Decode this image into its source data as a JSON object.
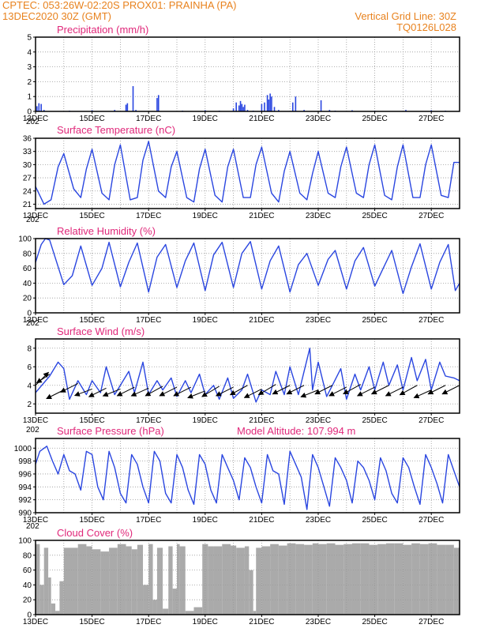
{
  "header": {
    "line1": "CPTEC:   053:26W-02:20S   PROX01: PRAINHA (PA)",
    "line2_left": "13DEC2020 30Z (GMT)",
    "line2_right": "Vertical Grid Line: 30Z",
    "line3_right": "TQ0126L028"
  },
  "colors": {
    "header": "#e8821e",
    "title": "#e0287a",
    "series": "#2a46e0",
    "cloud": "#aaaaaa",
    "arrow": "#000000",
    "grid": "#999999"
  },
  "year_label": "202",
  "chart_data": [
    {
      "id": "precip",
      "type": "bar",
      "title": "Precipitation (mm/h)",
      "xlim": [
        13.0,
        28.0
      ],
      "xticks": [
        "13DEC",
        "15DEC",
        "17DEC",
        "19DEC",
        "21DEC",
        "23DEC",
        "25DEC",
        "27DEC"
      ],
      "ylim": [
        0,
        5
      ],
      "yticks": [
        0,
        1,
        2,
        3,
        4,
        5
      ],
      "grid": true,
      "x": [
        13.05,
        13.12,
        13.2,
        13.3,
        14.2,
        15.0,
        15.8,
        16.2,
        16.25,
        16.45,
        16.55,
        17.3,
        17.35,
        18.2,
        19.0,
        19.5,
        20.0,
        20.1,
        20.2,
        20.25,
        20.3,
        20.35,
        20.4,
        20.5,
        20.7,
        21.0,
        21.1,
        21.2,
        21.25,
        21.3,
        21.35,
        21.45,
        21.6,
        22.1,
        22.2,
        22.5,
        23.1,
        23.4,
        23.6,
        24.2,
        25.0,
        26.1,
        27.0,
        27.5
      ],
      "values": [
        0.35,
        0.55,
        0.5,
        0.1,
        0.05,
        0.08,
        0.1,
        0.45,
        0.55,
        1.7,
        0.1,
        0.9,
        1.1,
        0.05,
        0.08,
        0.05,
        0.2,
        0.6,
        0.4,
        0.7,
        0.5,
        0.3,
        0.45,
        0.1,
        0.05,
        0.5,
        0.6,
        1.1,
        0.8,
        1.2,
        1.0,
        0.3,
        0.1,
        0.6,
        1.0,
        0.1,
        0.75,
        0.1,
        0.05,
        0.08,
        0.05,
        0.1,
        0.08,
        0.05
      ]
    },
    {
      "id": "temp",
      "type": "line",
      "title": "Surface Temperature (nC)",
      "xlim": [
        13.0,
        28.0
      ],
      "xticks": [
        "13DEC",
        "15DEC",
        "17DEC",
        "19DEC",
        "21DEC",
        "23DEC",
        "25DEC",
        "27DEC"
      ],
      "ylim": [
        20,
        36
      ],
      "yticks": [
        21,
        24,
        27,
        30,
        33,
        36
      ],
      "grid": true,
      "x": [
        13.0,
        13.3,
        13.55,
        13.8,
        14.0,
        14.35,
        14.6,
        14.8,
        15.0,
        15.35,
        15.6,
        15.8,
        16.0,
        16.35,
        16.6,
        16.8,
        17.0,
        17.35,
        17.6,
        17.8,
        18.0,
        18.35,
        18.6,
        18.8,
        19.0,
        19.35,
        19.6,
        19.8,
        20.0,
        20.35,
        20.6,
        20.8,
        21.0,
        21.35,
        21.6,
        21.8,
        22.0,
        22.35,
        22.6,
        22.8,
        23.0,
        23.35,
        23.6,
        23.8,
        24.0,
        24.35,
        24.6,
        24.8,
        25.0,
        25.35,
        25.6,
        25.8,
        26.0,
        26.35,
        26.6,
        26.8,
        27.0,
        27.35,
        27.6,
        27.8,
        28.0
      ],
      "values": [
        25.0,
        21.0,
        22.0,
        29.5,
        32.5,
        24.5,
        22.5,
        29.0,
        33.5,
        23.5,
        22.0,
        30.0,
        34.5,
        22.0,
        22.5,
        31.0,
        35.3,
        24.0,
        22.5,
        29.5,
        33.0,
        22.5,
        21.5,
        29.0,
        33.5,
        23.0,
        21.5,
        29.5,
        33.5,
        22.5,
        22.5,
        30.0,
        34.0,
        23.5,
        21.5,
        28.5,
        33.0,
        23.5,
        22.0,
        28.0,
        33.0,
        23.5,
        22.5,
        29.5,
        34.0,
        23.5,
        22.5,
        30.0,
        34.5,
        23.0,
        22.0,
        29.5,
        34.5,
        22.5,
        22.5,
        30.0,
        34.5,
        23.0,
        22.5,
        30.5,
        30.5
      ]
    },
    {
      "id": "rh",
      "type": "line",
      "title": "Relative Humidity (%)",
      "xlim": [
        13.0,
        28.0
      ],
      "xticks": [
        "13DEC",
        "15DEC",
        "17DEC",
        "19DEC",
        "21DEC",
        "23DEC",
        "25DEC",
        "27DEC"
      ],
      "ylim": [
        0,
        100
      ],
      "yticks": [
        0,
        20,
        40,
        60,
        80,
        100
      ],
      "grid": true,
      "x": [
        13.0,
        13.2,
        13.35,
        13.5,
        14.0,
        14.3,
        14.6,
        15.0,
        15.35,
        15.6,
        16.0,
        16.3,
        16.6,
        17.0,
        17.3,
        17.6,
        18.0,
        18.3,
        18.6,
        19.0,
        19.3,
        19.6,
        20.0,
        20.3,
        20.6,
        21.0,
        21.3,
        21.6,
        22.0,
        22.3,
        22.6,
        23.0,
        23.35,
        23.6,
        24.0,
        24.3,
        24.6,
        25.0,
        25.3,
        25.6,
        26.0,
        26.3,
        26.6,
        27.0,
        27.3,
        27.6,
        27.85,
        28.0
      ],
      "values": [
        68,
        92,
        100,
        98,
        38,
        50,
        90,
        37,
        60,
        95,
        35,
        68,
        94,
        28,
        75,
        92,
        34,
        70,
        94,
        30,
        78,
        95,
        34,
        80,
        96,
        32,
        70,
        90,
        28,
        65,
        80,
        37,
        72,
        84,
        32,
        70,
        88,
        36,
        60,
        84,
        26,
        62,
        93,
        32,
        68,
        92,
        30,
        40
      ]
    },
    {
      "id": "wind",
      "type": "line",
      "title": "Surface Wind (m/s)",
      "xlim": [
        13.0,
        28.0
      ],
      "xticks": [
        "13DEC",
        "15DEC",
        "17DEC",
        "19DEC",
        "21DEC",
        "23DEC",
        "25DEC",
        "27DEC"
      ],
      "ylim": [
        1,
        9
      ],
      "yticks": [
        2,
        4,
        6,
        8
      ],
      "grid": true,
      "x": [
        13.0,
        13.5,
        13.8,
        14.0,
        14.2,
        14.5,
        14.8,
        15.0,
        15.3,
        15.5,
        15.8,
        16.0,
        16.3,
        16.5,
        16.8,
        17.0,
        17.3,
        17.5,
        17.8,
        18.0,
        18.3,
        18.5,
        18.8,
        19.0,
        19.3,
        19.5,
        19.8,
        20.0,
        20.3,
        20.5,
        20.8,
        21.0,
        21.3,
        21.5,
        21.8,
        22.0,
        22.3,
        22.5,
        22.7,
        22.8,
        23.0,
        23.3,
        23.5,
        23.8,
        24.0,
        24.3,
        24.5,
        24.8,
        25.0,
        25.3,
        25.5,
        25.8,
        26.0,
        26.3,
        26.5,
        26.8,
        27.0,
        27.3,
        27.5,
        27.8,
        28.0
      ],
      "values": [
        3.2,
        5.0,
        6.5,
        5.8,
        2.5,
        4.5,
        3.0,
        4.5,
        3.2,
        6.0,
        3.0,
        4.0,
        5.5,
        3.2,
        6.5,
        3.0,
        4.5,
        3.5,
        4.8,
        2.8,
        4.5,
        3.2,
        5.2,
        3.0,
        4.0,
        2.5,
        4.8,
        2.6,
        3.5,
        5.2,
        2.2,
        3.5,
        3.0,
        5.5,
        3.0,
        6.0,
        3.0,
        5.5,
        8.0,
        3.5,
        6.5,
        2.8,
        4.0,
        5.8,
        2.5,
        5.2,
        3.5,
        6.0,
        3.5,
        6.5,
        4.0,
        6.2,
        3.5,
        7.0,
        4.5,
        6.8,
        3.5,
        6.5,
        5.0,
        4.8,
        4.5
      ],
      "vector_x": [
        13.0,
        13.5,
        14.0,
        14.5,
        15.0,
        15.5,
        16.0,
        16.5,
        17.0,
        17.5,
        18.0,
        18.5,
        19.0,
        19.5,
        20.0,
        20.5,
        21.0,
        21.5,
        22.0,
        22.5,
        23.0,
        23.5,
        24.0,
        24.5,
        25.0,
        25.5,
        26.0,
        26.5,
        27.0,
        27.5,
        28.0
      ],
      "vector_y": [
        4.0,
        5.2,
        3.5,
        4.2,
        3.6,
        3.7,
        3.6,
        3.8,
        3.7,
        3.9,
        3.8,
        3.8,
        3.4,
        3.9,
        3.8,
        4.0,
        3.6,
        4.1,
        4.0,
        4.0,
        3.5,
        4.0,
        3.8,
        4.1,
        3.8,
        4.0,
        3.8,
        4.0,
        3.5,
        4.0,
        4.0
      ],
      "vector_u": [
        3.0,
        -3.0,
        -4.0,
        -4.0,
        -4.0,
        -4.0,
        -4.0,
        -4.0,
        -4.0,
        -4.0,
        -4.0,
        -4.0,
        -4.0,
        -4.0,
        -4.0,
        -4.0,
        -4.0,
        -4.0,
        -4.0,
        -4.0,
        -4.0,
        -4.0,
        -4.0,
        -4.0,
        -4.0,
        -4.0,
        -4.0,
        -4.0,
        -4.0,
        -4.0,
        -4.0
      ],
      "vector_v": [
        3.0,
        -2.0,
        -2.0,
        -2.0,
        -1.5,
        -2.0,
        -1.6,
        -2.0,
        -1.8,
        -2.2,
        -2.0,
        -2.0,
        -1.6,
        -2.4,
        -2.0,
        -2.2,
        -2.0,
        -2.4,
        -2.0,
        -2.0,
        -1.6,
        -2.0,
        -2.0,
        -2.2,
        -2.0,
        -2.0,
        -2.0,
        -2.2,
        -1.8,
        -2.0,
        -2.0
      ]
    },
    {
      "id": "pres",
      "type": "line",
      "title": "Surface Pressure (hPa)",
      "subtitle": "Model Altitude: 107.994 m",
      "xlim": [
        13.0,
        28.0
      ],
      "xticks": [
        "13DEC",
        "15DEC",
        "17DEC",
        "19DEC",
        "21DEC",
        "23DEC",
        "25DEC",
        "27DEC"
      ],
      "ylim": [
        990,
        1001.5
      ],
      "yticks": [
        990,
        992,
        994,
        996,
        998,
        1000
      ],
      "grid": true,
      "x": [
        13.0,
        13.15,
        13.4,
        13.6,
        13.8,
        14.0,
        14.2,
        14.4,
        14.6,
        14.8,
        15.0,
        15.2,
        15.4,
        15.6,
        15.8,
        16.0,
        16.2,
        16.4,
        16.6,
        16.8,
        17.0,
        17.2,
        17.4,
        17.6,
        17.8,
        18.0,
        18.2,
        18.4,
        18.6,
        18.8,
        19.0,
        19.2,
        19.4,
        19.6,
        19.8,
        20.0,
        20.2,
        20.4,
        20.6,
        20.8,
        21.0,
        21.2,
        21.4,
        21.6,
        21.8,
        22.0,
        22.2,
        22.4,
        22.6,
        22.8,
        23.0,
        23.2,
        23.4,
        23.6,
        23.8,
        24.0,
        24.2,
        24.4,
        24.6,
        24.8,
        25.0,
        25.2,
        25.4,
        25.6,
        25.8,
        26.0,
        26.2,
        26.4,
        26.6,
        26.8,
        27.0,
        27.2,
        27.4,
        27.6,
        27.8,
        28.0
      ],
      "values": [
        997.5,
        999.5,
        1000.3,
        998.0,
        996.0,
        999.0,
        996.5,
        996.0,
        993.5,
        999.5,
        999.0,
        994.0,
        992.0,
        999.5,
        997.0,
        993.0,
        991.5,
        999.0,
        997.5,
        994.0,
        991.5,
        999.5,
        998.0,
        993.0,
        991.5,
        999.0,
        997.0,
        993.5,
        991.3,
        999.0,
        997.5,
        993.5,
        991.5,
        999.0,
        997.0,
        995.0,
        992.0,
        998.5,
        997.0,
        994.0,
        991.5,
        999.0,
        996.5,
        996.0,
        991.3,
        999.5,
        997.5,
        995.5,
        990.5,
        999.0,
        997.0,
        994.0,
        991.0,
        998.5,
        997.0,
        995.0,
        991.5,
        998.0,
        997.0,
        995.0,
        992.0,
        998.5,
        996.5,
        993.0,
        991.5,
        998.5,
        997.0,
        994.0,
        991.3,
        999.0,
        997.0,
        994.5,
        991.5,
        999.0,
        996.5,
        994.0
      ]
    },
    {
      "id": "cloud",
      "type": "area",
      "title": "Cloud Cover (%)",
      "xlim": [
        13.0,
        28.0
      ],
      "xticks": [
        "13DEC",
        "15DEC",
        "17DEC",
        "19DEC",
        "21DEC",
        "23DEC",
        "25DEC",
        "27DEC"
      ],
      "ylim": [
        0,
        100
      ],
      "yticks": [
        0,
        20,
        40,
        60,
        80,
        100
      ],
      "grid": true,
      "x": [
        13.0,
        13.15,
        13.3,
        13.45,
        13.55,
        13.7,
        13.85,
        14.0,
        14.5,
        14.8,
        15.0,
        15.3,
        15.6,
        15.9,
        16.2,
        16.4,
        16.6,
        16.8,
        17.0,
        17.15,
        17.3,
        17.5,
        17.7,
        17.85,
        18.0,
        18.1,
        18.3,
        18.6,
        18.9,
        19.1,
        19.3,
        19.6,
        19.9,
        20.1,
        20.4,
        20.55,
        20.7,
        20.8,
        21.0,
        21.3,
        21.6,
        21.9,
        22.2,
        22.5,
        22.8,
        23.0,
        23.3,
        23.6,
        23.9,
        24.2,
        24.5,
        24.8,
        25.1,
        25.4,
        25.7,
        26.0,
        26.3,
        26.6,
        26.9,
        27.2,
        27.5,
        27.8,
        28.0
      ],
      "values": [
        95,
        40,
        90,
        50,
        15,
        5,
        45,
        90,
        95,
        92,
        88,
        85,
        90,
        95,
        92,
        88,
        94,
        40,
        95,
        20,
        90,
        8,
        92,
        35,
        95,
        92,
        5,
        10,
        95,
        92,
        92,
        95,
        93,
        90,
        92,
        60,
        5,
        90,
        92,
        95,
        93,
        96,
        95,
        94,
        96,
        95,
        96,
        94,
        95,
        96,
        96,
        94,
        95,
        96,
        96,
        94,
        96,
        95,
        96,
        94,
        94,
        90,
        40
      ]
    }
  ]
}
